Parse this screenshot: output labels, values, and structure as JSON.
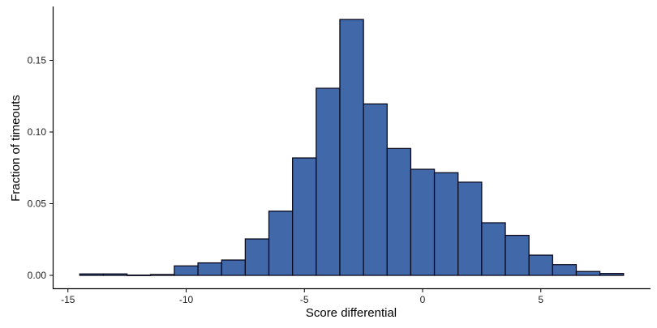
{
  "chart_data": {
    "type": "bar",
    "subtype": "histogram",
    "title": "",
    "xlabel": "Score differential",
    "ylabel": "Fraction of timeouts",
    "bin_width": 1,
    "bin_centers": [
      -14,
      -13,
      -12,
      -11,
      -10,
      -9,
      -8,
      -7,
      -6,
      -5,
      -4,
      -3,
      -2,
      -1,
      0,
      1,
      2,
      3,
      4,
      5,
      6,
      7,
      8
    ],
    "values": [
      0.001,
      0.001,
      0.0002,
      0.0006,
      0.0066,
      0.0087,
      0.0107,
      0.0254,
      0.0448,
      0.0819,
      0.1305,
      0.1785,
      0.1196,
      0.0885,
      0.074,
      0.0716,
      0.065,
      0.0367,
      0.0279,
      0.0141,
      0.0075,
      0.0027,
      0.0013
    ],
    "xlim": [
      -15.6,
      9.7
    ],
    "ylim": [
      -0.009,
      0.187
    ],
    "x_ticks": [
      -15,
      -10,
      -5,
      0,
      5
    ],
    "x_tick_labels": [
      "-15",
      "-10",
      "-5",
      "0",
      "5"
    ],
    "y_ticks": [
      0.0,
      0.05,
      0.1,
      0.15
    ],
    "y_tick_labels": [
      "0.00",
      "0.05",
      "0.10",
      "0.15"
    ],
    "grid": false,
    "legend": null,
    "colors": {
      "bar_fill": "#4169aa",
      "bar_edge": "#0a0a1e",
      "axis": "#000000"
    }
  }
}
